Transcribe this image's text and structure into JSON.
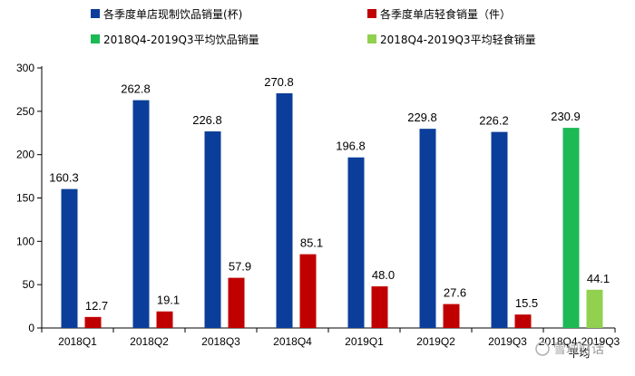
{
  "chart_data": {
    "type": "bar",
    "categories": [
      "2018Q1",
      "2018Q2",
      "2018Q3",
      "2018Q4",
      "2019Q1",
      "2019Q2",
      "2019Q3",
      "2018Q4-2019Q3 平均"
    ],
    "series": [
      {
        "name": "各季度单店现制饮品销量(杯)",
        "color": "#0b3e9a",
        "values": [
          160.3,
          262.8,
          226.8,
          270.8,
          196.8,
          229.8,
          226.2,
          null
        ],
        "labels": [
          "160.3",
          "262.8",
          "226.8",
          "270.8",
          "196.8",
          "229.8",
          "226.2",
          null
        ]
      },
      {
        "name": "各季度单店轻食销量（件）",
        "color": "#c00000",
        "values": [
          12.7,
          19.1,
          57.9,
          85.1,
          48.0,
          27.6,
          15.5,
          null
        ],
        "labels": [
          "12.7",
          "19.1",
          "57.9",
          "85.1",
          "48.0",
          "27.6",
          "15.5",
          null
        ]
      },
      {
        "name": "2018Q4-2019Q3平均饮品销量",
        "color": "#1db954",
        "values": [
          null,
          null,
          null,
          null,
          null,
          null,
          null,
          230.9
        ],
        "labels": [
          null,
          null,
          null,
          null,
          null,
          null,
          null,
          "230.9"
        ]
      },
      {
        "name": "2018Q4-2019Q3平均轻食销量",
        "color": "#92d050",
        "values": [
          null,
          null,
          null,
          null,
          null,
          null,
          null,
          44.1
        ],
        "labels": [
          null,
          null,
          null,
          null,
          null,
          null,
          null,
          "44.1"
        ]
      }
    ],
    "ylim": [
      0,
      300
    ],
    "yticks": [
      0,
      50,
      100,
      150,
      200,
      250,
      300
    ],
    "grid": false,
    "legend_position": "top"
  },
  "watermark": "雪球财话"
}
